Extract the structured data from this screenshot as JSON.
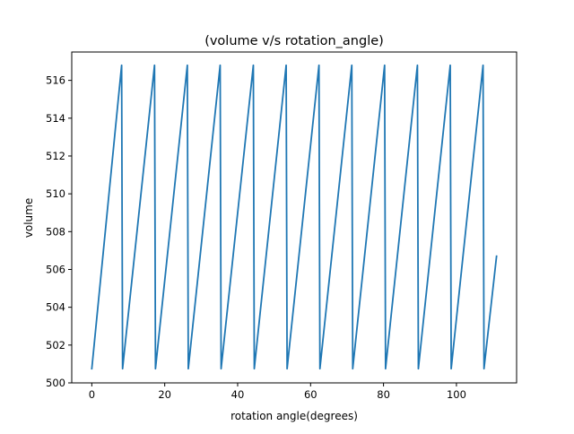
{
  "chart_data": {
    "type": "line",
    "title": "(volume v/s rotation_angle)",
    "xlabel": "rotation angle(degrees)",
    "ylabel": "volume",
    "xlim": [
      -5.5,
      116.5
    ],
    "ylim": [
      500.0,
      517.5
    ],
    "x_ticks": [
      0,
      20,
      40,
      60,
      80,
      100
    ],
    "y_ticks": [
      500,
      502,
      504,
      506,
      508,
      510,
      512,
      514,
      516
    ],
    "grid": false,
    "legend": "none",
    "series": [
      {
        "color": "#1f77b4",
        "x": [
          0,
          8.18,
          8.44,
          17.2,
          17.46,
          26.2,
          26.46,
          35.2,
          35.46,
          44.3,
          44.56,
          53.3,
          53.56,
          62.3,
          62.56,
          71.3,
          71.56,
          80.3,
          80.56,
          89.3,
          89.56,
          98.3,
          98.56,
          107.3,
          107.56,
          111.0
        ],
        "values": [
          500.75,
          516.8,
          500.75,
          516.8,
          500.75,
          516.8,
          500.75,
          516.8,
          500.75,
          516.8,
          500.75,
          516.8,
          500.75,
          516.8,
          500.75,
          516.8,
          500.75,
          516.8,
          500.75,
          516.8,
          500.75,
          516.8,
          500.75,
          516.8,
          500.75,
          506.7
        ]
      }
    ]
  }
}
